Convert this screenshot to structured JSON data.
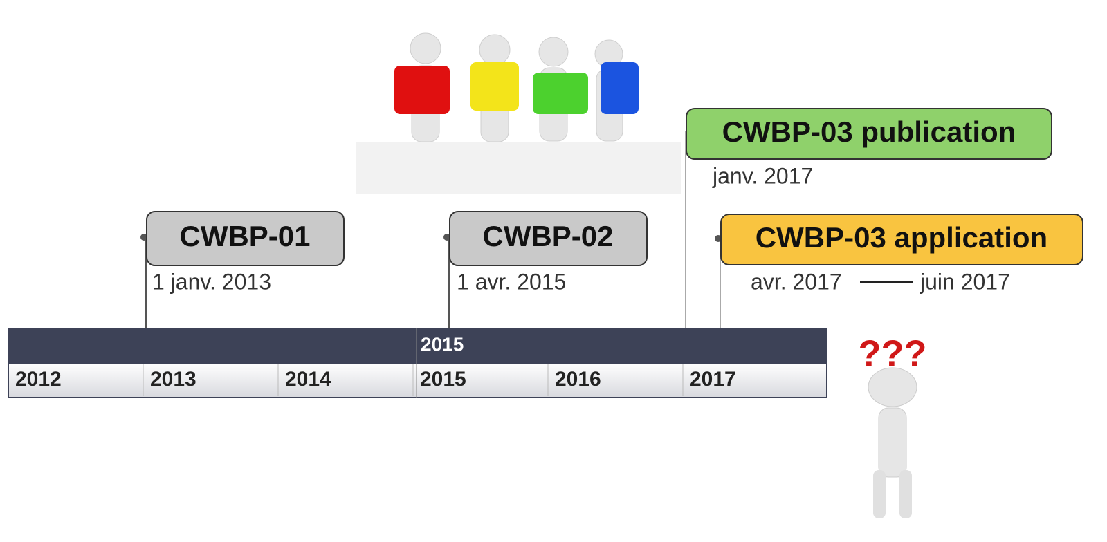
{
  "milestones": [
    {
      "label": "CWBP-01",
      "date": "1 janv. 2013"
    },
    {
      "label": "CWBP-02",
      "date": "1 avr. 2015"
    },
    {
      "label": "CWBP-03 publication",
      "date": "janv. 2017"
    },
    {
      "label": "CWBP-03 application",
      "start": "avr. 2017",
      "end": "juin 2017"
    }
  ],
  "timeline": {
    "header": "2015",
    "years": [
      "2012",
      "2013",
      "2014",
      "2015",
      "2016",
      "2017"
    ]
  }
}
